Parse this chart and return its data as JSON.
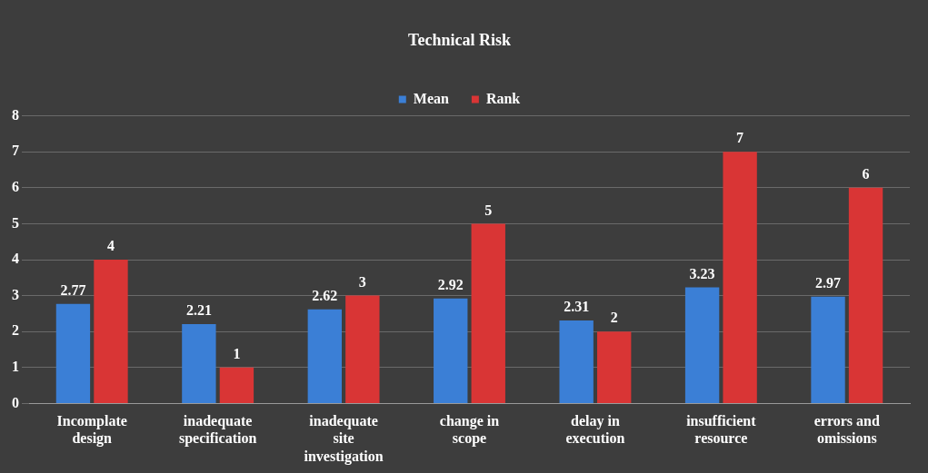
{
  "chart_data": {
    "type": "bar",
    "title": "Technical Risk",
    "categories": [
      "Incomplate design",
      "inadequate specification",
      "inadequate site investigation",
      "change in scope",
      "delay in execution",
      "insufficient resource",
      "errors and omissions"
    ],
    "series": [
      {
        "name": "Mean",
        "color": "#3b7fd6",
        "values": [
          2.77,
          2.21,
          2.62,
          2.92,
          2.31,
          3.23,
          2.97
        ]
      },
      {
        "name": "Rank",
        "color": "#d93535",
        "values": [
          4,
          1,
          3,
          5,
          2,
          7,
          6
        ]
      }
    ],
    "ylim": [
      0,
      8
    ],
    "yticks": [
      0,
      1,
      2,
      3,
      4,
      5,
      6,
      7,
      8
    ],
    "grid": "y",
    "legend": "top",
    "data_labels": true
  }
}
